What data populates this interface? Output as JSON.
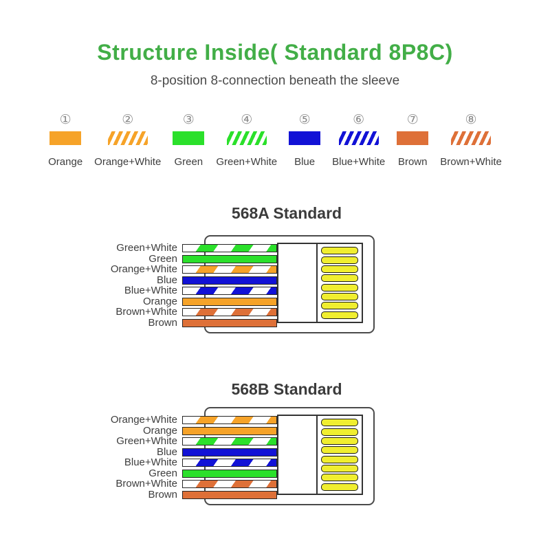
{
  "header": {
    "title": "Structure Inside( Standard 8P8C)",
    "subtitle": "8-position 8-connection beneath the sleeve"
  },
  "colors": {
    "orange": "#F6A329",
    "green": "#2BE02B",
    "blue": "#1212D6",
    "brown": "#DE7038",
    "pin_yellow": "#F0EE30",
    "title_green": "#42AE47"
  },
  "connector": {
    "pin_count": 8
  },
  "legend": {
    "items": [
      {
        "number": "①",
        "label": "Orange",
        "color": "orange",
        "striped": false
      },
      {
        "number": "②",
        "label": "Orange+White",
        "color": "orange",
        "striped": true
      },
      {
        "number": "③",
        "label": "Green",
        "color": "green",
        "striped": false
      },
      {
        "number": "④",
        "label": "Green+White",
        "color": "green",
        "striped": true
      },
      {
        "number": "⑤",
        "label": "Blue",
        "color": "blue",
        "striped": false
      },
      {
        "number": "⑥",
        "label": "Blue+White",
        "color": "blue",
        "striped": true
      },
      {
        "number": "⑦",
        "label": "Brown",
        "color": "brown",
        "striped": false
      },
      {
        "number": "⑧",
        "label": "Brown+White",
        "color": "brown",
        "striped": true
      }
    ]
  },
  "diagrams": [
    {
      "title": "568A Standard",
      "wires": [
        {
          "label": "Green+White",
          "color": "green",
          "striped": true
        },
        {
          "label": "Green",
          "color": "green",
          "striped": false
        },
        {
          "label": "Orange+White",
          "color": "orange",
          "striped": true
        },
        {
          "label": "Blue",
          "color": "blue",
          "striped": false
        },
        {
          "label": "Blue+White",
          "color": "blue",
          "striped": true
        },
        {
          "label": "Orange",
          "color": "orange",
          "striped": false
        },
        {
          "label": "Brown+White",
          "color": "brown",
          "striped": true
        },
        {
          "label": "Brown",
          "color": "brown",
          "striped": false
        }
      ]
    },
    {
      "title": "568B Standard",
      "wires": [
        {
          "label": "Orange+White",
          "color": "orange",
          "striped": true
        },
        {
          "label": "Orange",
          "color": "orange",
          "striped": false
        },
        {
          "label": "Green+White",
          "color": "green",
          "striped": true
        },
        {
          "label": "Blue",
          "color": "blue",
          "striped": false
        },
        {
          "label": "Blue+White",
          "color": "blue",
          "striped": true
        },
        {
          "label": "Green",
          "color": "green",
          "striped": false
        },
        {
          "label": "Brown+White",
          "color": "brown",
          "striped": true
        },
        {
          "label": "Brown",
          "color": "brown",
          "striped": false
        }
      ]
    }
  ]
}
